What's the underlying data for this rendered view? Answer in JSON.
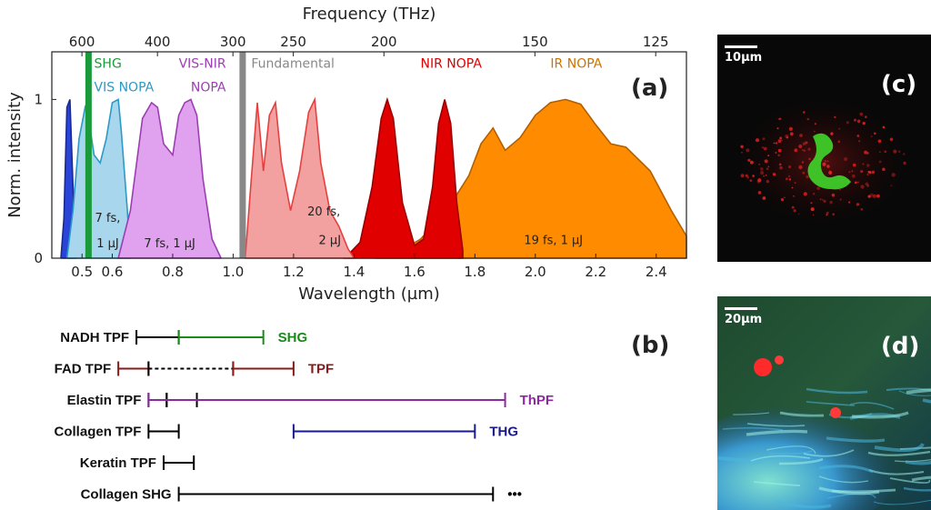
{
  "chart_data": [
    {
      "type": "area",
      "panel_label": "(a)",
      "xlabel": "Wavelength (µm)",
      "ylabel": "Norm. intensity",
      "xlim": [
        0.4,
        2.5
      ],
      "ylim": [
        0,
        1.3
      ],
      "x_ticks": [
        {
          "v": 0.5,
          "t": "0.5"
        },
        {
          "v": 0.6,
          "t": "0.6"
        },
        {
          "v": 0.8,
          "t": "0.8"
        },
        {
          "v": 1.0,
          "t": "1.0"
        },
        {
          "v": 1.2,
          "t": "1.2"
        },
        {
          "v": 1.4,
          "t": "1.4"
        },
        {
          "v": 1.6,
          "t": "1.6"
        },
        {
          "v": 1.8,
          "t": "1.8"
        },
        {
          "v": 2.0,
          "t": "2.0"
        },
        {
          "v": 2.2,
          "t": "2.2"
        },
        {
          "v": 2.4,
          "t": "2.4"
        }
      ],
      "y_ticks": [
        {
          "v": 0,
          "t": "0"
        },
        {
          "v": 1,
          "t": "1"
        }
      ],
      "x2label": "Frequency (THz)",
      "x2_ticks": [
        {
          "v": 600,
          "t": "600"
        },
        {
          "v": 400,
          "t": "400"
        },
        {
          "v": 300,
          "t": "300"
        },
        {
          "v": 250,
          "t": "250"
        },
        {
          "v": 200,
          "t": "200"
        },
        {
          "v": 150,
          "t": "150"
        },
        {
          "v": 125,
          "t": "125"
        }
      ],
      "series": [
        {
          "name": "IR NOPA",
          "fill": "#ff8c00",
          "stroke": "#b35f00",
          "x": [
            1.47,
            1.55,
            1.62,
            1.7,
            1.78,
            1.82,
            1.86,
            1.9,
            1.95,
            2.0,
            2.05,
            2.1,
            2.15,
            2.2,
            2.25,
            2.3,
            2.38,
            2.45,
            2.5
          ],
          "y": [
            0,
            0.04,
            0.12,
            0.28,
            0.52,
            0.72,
            0.82,
            0.68,
            0.76,
            0.9,
            0.98,
            1.0,
            0.97,
            0.84,
            0.72,
            0.7,
            0.55,
            0.3,
            0.14
          ]
        },
        {
          "name": "NIR NOPA",
          "fill": "#e00000",
          "stroke": "#9b0000",
          "x": [
            1.37,
            1.42,
            1.46,
            1.49,
            1.51,
            1.53,
            1.56,
            1.6,
            1.63,
            1.66,
            1.68,
            1.7,
            1.72,
            1.74,
            1.76
          ],
          "y": [
            0,
            0.1,
            0.45,
            0.88,
            1.0,
            0.88,
            0.35,
            0.08,
            0.12,
            0.45,
            0.85,
            1.0,
            0.85,
            0.35,
            0.05
          ]
        },
        {
          "name": "Fundamental",
          "fill": "#f3a0a0",
          "stroke": "#e54040",
          "x": [
            1.04,
            1.06,
            1.08,
            1.1,
            1.12,
            1.14,
            1.16,
            1.19,
            1.22,
            1.25,
            1.27,
            1.29,
            1.32,
            1.35,
            1.38,
            1.4
          ],
          "y": [
            0,
            0.5,
            0.98,
            0.55,
            0.9,
            0.98,
            0.6,
            0.3,
            0.55,
            0.92,
            1.0,
            0.6,
            0.3,
            0.2,
            0.06,
            0
          ]
        },
        {
          "name": "SHG",
          "fill": "#2a44d8",
          "stroke": "#1a2a90",
          "x": [
            0.43,
            0.44,
            0.45,
            0.46,
            0.47,
            0.48
          ],
          "y": [
            0,
            0.25,
            0.95,
            1.0,
            0.45,
            0
          ]
        },
        {
          "name": "VIS NOPA",
          "fill": "#a8d6ec",
          "stroke": "#2b9ac6",
          "x": [
            0.45,
            0.47,
            0.49,
            0.51,
            0.52,
            0.54,
            0.56,
            0.58,
            0.6,
            0.62,
            0.63,
            0.65,
            0.66
          ],
          "y": [
            0,
            0.3,
            0.75,
            0.95,
            0.9,
            0.65,
            0.6,
            0.75,
            0.98,
            1.0,
            0.8,
            0.3,
            0
          ]
        },
        {
          "name": "VIS-NIR NOPA",
          "fill": "#e0a2ee",
          "stroke": "#9b3fb0",
          "x": [
            0.62,
            0.66,
            0.7,
            0.73,
            0.75,
            0.77,
            0.8,
            0.82,
            0.84,
            0.86,
            0.88,
            0.9,
            0.93,
            0.96
          ],
          "y": [
            0,
            0.3,
            0.88,
            0.98,
            0.95,
            0.72,
            0.65,
            0.9,
            0.98,
            1.0,
            0.9,
            0.5,
            0.12,
            0
          ]
        }
      ],
      "markers": [
        {
          "name": "SHG",
          "x": 0.52,
          "color": "#1a9a3a"
        },
        {
          "name": "Fundamental",
          "x": 1.03,
          "color": "#888888"
        }
      ],
      "labels": [
        {
          "text": "SHG",
          "color": "#1a9a3a",
          "x": 0.54,
          "y": 1.2
        },
        {
          "text": "VIS NOPA",
          "color": "#2b9ac6",
          "x": 0.54,
          "y": 1.05
        },
        {
          "text": "VIS-NIR",
          "color": "#9b3fb0",
          "x": 0.82,
          "y": 1.2
        },
        {
          "text": "NOPA",
          "color": "#9b3fb0",
          "x": 0.86,
          "y": 1.05
        },
        {
          "text": "Fundamental",
          "color": "#888888",
          "x": 1.06,
          "y": 1.2
        },
        {
          "text": "NIR NOPA",
          "color": "#e00000",
          "x": 1.62,
          "y": 1.2
        },
        {
          "text": "IR NOPA",
          "color": "#cc7400",
          "x": 2.05,
          "y": 1.2
        }
      ],
      "annotations": [
        {
          "text": "7 fs,",
          "x": 0.585,
          "y": 0.23
        },
        {
          "text": "1 µJ",
          "x": 0.585,
          "y": 0.07
        },
        {
          "text": "7 fs, 1 µJ",
          "x": 0.79,
          "y": 0.07
        },
        {
          "text": "20 fs,",
          "x": 1.3,
          "y": 0.27
        },
        {
          "text": "2 µJ",
          "x": 1.32,
          "y": 0.09
        },
        {
          "text": "19 fs, 1 µJ",
          "x": 2.06,
          "y": 0.09
        }
      ]
    },
    {
      "type": "range",
      "panel_label": "(b)",
      "rows": [
        {
          "label": "NADH TPF",
          "segments": [
            {
              "from": 0.68,
              "to": 0.82,
              "style": "solid",
              "color": "#000000"
            },
            {
              "from": 0.82,
              "to": 1.1,
              "style": "solid",
              "color": "#1a8a1a"
            }
          ],
          "end_label": "SHG",
          "end_color": "#1a8a1a"
        },
        {
          "label": "FAD TPF",
          "segments": [
            {
              "from": 0.62,
              "to": 0.72,
              "style": "solid",
              "color": "#8b1a1a"
            },
            {
              "from": 0.72,
              "to": 1.0,
              "style": "dashed",
              "color": "#000000"
            },
            {
              "from": 1.0,
              "to": 1.2,
              "style": "solid",
              "color": "#8b1a1a"
            }
          ],
          "end_label": "TPF",
          "end_color": "#8b1a1a"
        },
        {
          "label": "Elastin TPF",
          "segments": [
            {
              "from": 0.72,
              "to": 0.78,
              "style": "solid",
              "color": "#000000"
            },
            {
              "from": 0.78,
              "to": 0.88,
              "style": "dashed",
              "color": "#000000"
            },
            {
              "from": 0.72,
              "to": 1.9,
              "style": "solid",
              "color": "#8b2a9e"
            }
          ],
          "end_label": "ThPF",
          "end_color": "#8b2a9e"
        },
        {
          "label": "Collagen TPF",
          "segments": [
            {
              "from": 0.72,
              "to": 0.82,
              "style": "solid",
              "color": "#000000"
            },
            {
              "from": 1.2,
              "to": 1.8,
              "style": "solid",
              "color": "#1a1a8b"
            }
          ],
          "end_label": "THG",
          "end_color": "#1a1a8b"
        },
        {
          "label": "Keratin TPF",
          "segments": [
            {
              "from": 0.77,
              "to": 0.87,
              "style": "solid",
              "color": "#000000"
            }
          ],
          "end_label": "",
          "end_color": "#000000"
        },
        {
          "label": "Collagen SHG",
          "segments": [
            {
              "from": 0.82,
              "to": 1.86,
              "style": "solid",
              "color": "#000000"
            }
          ],
          "end_label": "•••",
          "end_color": "#000000"
        }
      ]
    }
  ],
  "images": [
    {
      "panel_label": "(c)",
      "scale": "10µm"
    },
    {
      "panel_label": "(d)",
      "scale": "20µm"
    }
  ]
}
